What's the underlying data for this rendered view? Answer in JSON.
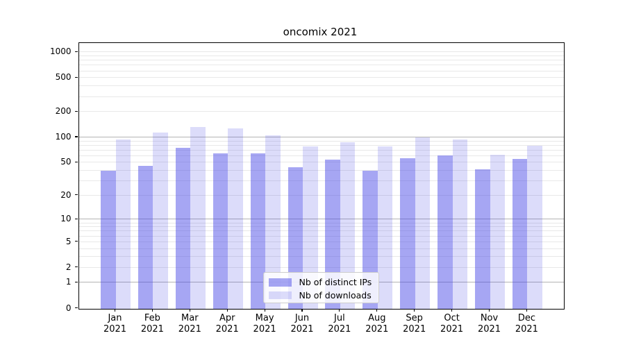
{
  "title": "oncomix 2021",
  "chart_data": {
    "type": "bar",
    "title": "oncomix 2021",
    "year": "2021",
    "categories": [
      "Jan",
      "Feb",
      "Mar",
      "Apr",
      "May",
      "Jun",
      "Jul",
      "Aug",
      "Sep",
      "Oct",
      "Nov",
      "Dec"
    ],
    "series": [
      {
        "name": "Nb of distinct IPs",
        "color": "rgba(70,70,230,0.48)",
        "values": [
          40,
          46,
          75,
          65,
          65,
          44,
          54,
          40,
          57,
          61,
          42,
          55
        ]
      },
      {
        "name": "Nb of downloads",
        "color": "rgba(70,70,230,0.19)",
        "values": [
          95,
          115,
          133,
          129,
          105,
          78,
          87,
          78,
          100,
          94,
          62,
          79
        ]
      }
    ],
    "y_scale": "log10(1+x)",
    "y_ticks": [
      1000,
      500,
      200,
      100,
      50,
      20,
      10,
      5,
      2,
      1,
      0
    ],
    "y_major_gridlines": [
      1,
      10,
      100
    ],
    "y_minor_gridlines": [
      2,
      3,
      4,
      5,
      6,
      7,
      8,
      9,
      20,
      30,
      40,
      50,
      60,
      70,
      80,
      90,
      200,
      300,
      400,
      500,
      600,
      700,
      800,
      900,
      1000
    ],
    "ylim": [
      0,
      1280
    ],
    "grid": "on",
    "legend_position": "lower center inside plot",
    "colors": {
      "major_grid": "#b3b3b3",
      "minor_grid": "#e8e8e8",
      "axis": "#000000",
      "background": "#ffffff"
    }
  }
}
